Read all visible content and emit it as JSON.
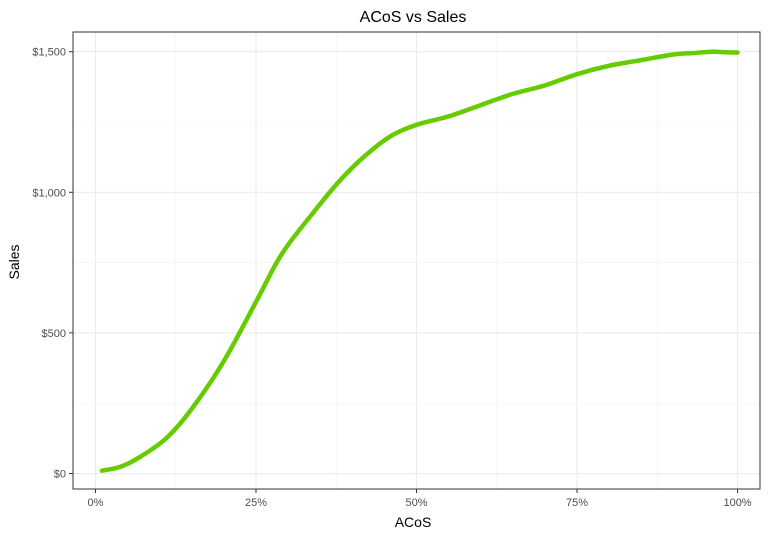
{
  "chart_data": {
    "type": "line",
    "title": "ACoS vs Sales",
    "xlabel": "ACoS",
    "ylabel": "Sales",
    "xlim": [
      -0.035,
      1.035
    ],
    "ylim": [
      -55,
      1570
    ],
    "x_ticks": [
      0,
      0.25,
      0.5,
      0.75,
      1.0
    ],
    "x_tick_labels": [
      "0%",
      "25%",
      "50%",
      "75%",
      "100%"
    ],
    "y_ticks": [
      0,
      500,
      1000,
      1500
    ],
    "y_tick_labels": [
      "$0",
      "$500",
      "$1,000",
      "$1,500"
    ],
    "grid": true,
    "legend": "none",
    "series": [
      {
        "color": "#66cc00",
        "x": [
          0.01,
          0.04,
          0.07,
          0.11,
          0.15,
          0.2,
          0.25,
          0.29,
          0.34,
          0.38,
          0.42,
          0.46,
          0.5,
          0.55,
          0.6,
          0.65,
          0.7,
          0.75,
          0.8,
          0.85,
          0.9,
          0.93,
          0.96,
          0.98,
          1.0
        ],
        "y": [
          10,
          25,
          60,
          125,
          230,
          400,
          610,
          780,
          930,
          1040,
          1130,
          1200,
          1240,
          1270,
          1310,
          1350,
          1380,
          1420,
          1450,
          1470,
          1490,
          1495,
          1500,
          1498,
          1497
        ]
      }
    ]
  }
}
